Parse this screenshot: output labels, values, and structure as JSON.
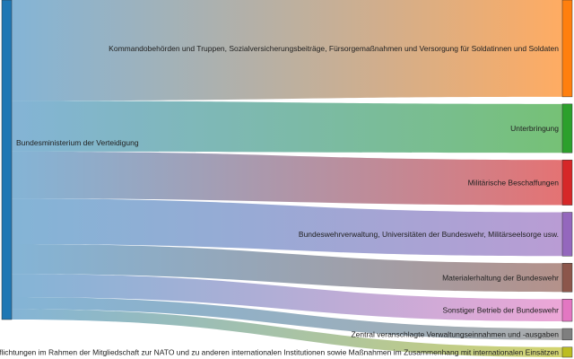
{
  "chart_data": {
    "type": "sankey",
    "source": {
      "label": "Bundesministerium der Verteidigung",
      "color": "#1f77b4"
    },
    "targets": [
      {
        "label": "Kommandobehörden und Truppen, Sozialversicherungsbeiträge, Fürsorgemaßnahmen und Versorgung für Soldatinnen und Soldaten",
        "value": 13.5,
        "color": "#ff7f0e"
      },
      {
        "label": "Unterbringung",
        "value": 6.8,
        "color": "#2ca02c"
      },
      {
        "label": "Militärische Beschaffungen",
        "value": 6.3,
        "color": "#d62728"
      },
      {
        "label": "Bundeswehrverwaltung, Universitäten der Bundeswehr, Militärseelsorge usw.",
        "value": 6.1,
        "color": "#9467bd"
      },
      {
        "label": "Materialerhaltung der Bundeswehr",
        "value": 4.0,
        "color": "#8c564b"
      },
      {
        "label": "Sonstiger Betrieb der Bundeswehr",
        "value": 3.1,
        "color": "#e377c2"
      },
      {
        "label": "Zentral veranschlagte Verwaltungseinnahmen und -ausgaben",
        "value": 1.6,
        "color": "#7f7f7f"
      },
      {
        "label": "Verpflichtungen im Rahmen der Mitgliedschaft zur NATO und zu anderen internationalen Institutionen sowie Maßnahmen im Zusammenhang mit internationalen Einsätzen",
        "value": 1.4,
        "color": "#bcbd22"
      }
    ]
  }
}
